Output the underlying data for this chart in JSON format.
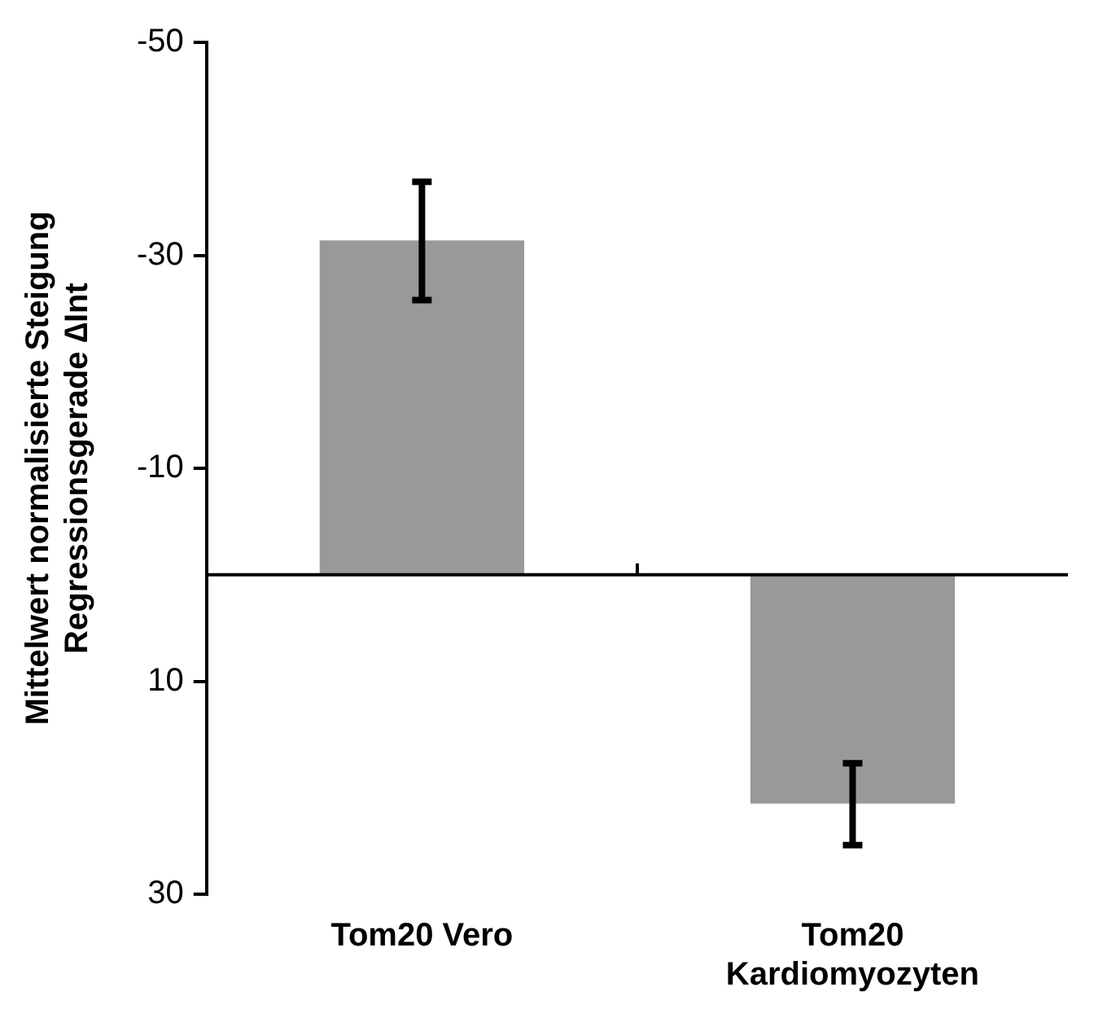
{
  "chart_data": {
    "type": "bar",
    "ylabel": "Mittelwert normalisierte Steigung Regressionsgerade ∆Int",
    "categories": [
      "Tom20 Vero",
      "Tom20 Kardiomyozyten"
    ],
    "values": [
      -31.4,
      21.5
    ],
    "errors": [
      [
        -36.9,
        -25.8
      ],
      [
        17.7,
        25.4
      ]
    ],
    "color": "#999999",
    "ylim": [
      30,
      -50
    ],
    "yticks": [
      -50,
      -30,
      -10,
      10,
      30
    ],
    "ref_lines": [
      {
        "axis": "y",
        "value": 0,
        "color": "#000000"
      }
    ],
    "grid": false,
    "legend": false
  }
}
